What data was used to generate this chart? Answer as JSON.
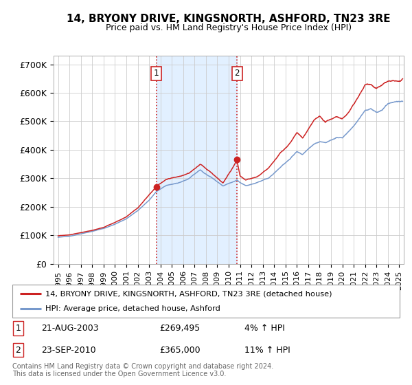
{
  "title": "14, BRYONY DRIVE, KINGSNORTH, ASHFORD, TN23 3RE",
  "subtitle": "Price paid vs. HM Land Registry's House Price Index (HPI)",
  "yticks": [
    0,
    100000,
    200000,
    300000,
    400000,
    500000,
    600000,
    700000
  ],
  "ytick_labels": [
    "£0",
    "£100K",
    "£200K",
    "£300K",
    "£400K",
    "£500K",
    "£600K",
    "£700K"
  ],
  "xlim_start": 1994.6,
  "xlim_end": 2025.4,
  "ylim_min": 0,
  "ylim_max": 730000,
  "sale1_x": 2003.644,
  "sale1_y": 269495,
  "sale2_x": 2010.731,
  "sale2_y": 365000,
  "line_color_property": "#cc2222",
  "line_color_hpi": "#7799cc",
  "shade_color": "#ddeeff",
  "vline_color": "#cc2222",
  "legend_label_property": "14, BRYONY DRIVE, KINGSNORTH, ASHFORD, TN23 3RE (detached house)",
  "legend_label_hpi": "HPI: Average price, detached house, Ashford",
  "sale1_date": "21-AUG-2003",
  "sale1_price": "£269,495",
  "sale1_hpi": "4% ↑ HPI",
  "sale2_date": "23-SEP-2010",
  "sale2_price": "£365,000",
  "sale2_hpi": "11% ↑ HPI",
  "footnote": "Contains HM Land Registry data © Crown copyright and database right 2024.\nThis data is licensed under the Open Government Licence v3.0.",
  "xtick_years": [
    1995,
    1996,
    1997,
    1998,
    1999,
    2000,
    2001,
    2002,
    2003,
    2004,
    2005,
    2006,
    2007,
    2008,
    2009,
    2010,
    2011,
    2012,
    2013,
    2014,
    2015,
    2016,
    2017,
    2018,
    2019,
    2020,
    2021,
    2022,
    2023,
    2024,
    2025
  ]
}
